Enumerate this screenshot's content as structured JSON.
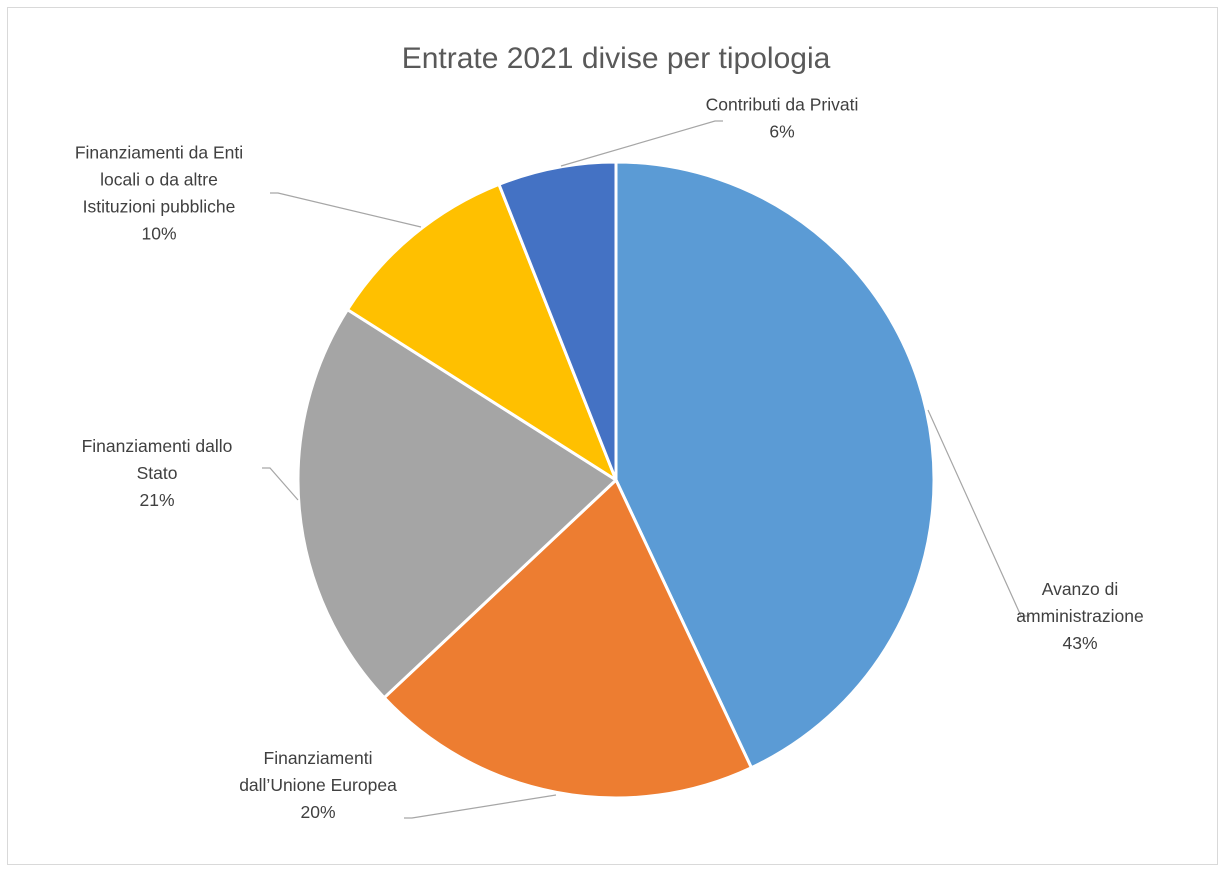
{
  "chart_data": {
    "type": "pie",
    "title": "Entrate 2021 divise per tipologia",
    "slices": [
      {
        "label_lines": [
          "Avanzo di",
          "amministrazione"
        ],
        "value": 43,
        "value_label": "43%",
        "color": "#5b9bd5"
      },
      {
        "label_lines": [
          "Finanziamenti",
          "dall’Unione Europea"
        ],
        "value": 20,
        "value_label": "20%",
        "color": "#ed7d31"
      },
      {
        "label_lines": [
          "Finanziamenti dallo",
          "Stato"
        ],
        "value": 21,
        "value_label": "21%",
        "color": "#a5a5a5"
      },
      {
        "label_lines": [
          "Finanziamenti da Enti",
          "locali o da altre",
          "Istituzioni pubbliche"
        ],
        "value": 10,
        "value_label": "10%",
        "color": "#ffc000"
      },
      {
        "label_lines": [
          "Contributi da Privati"
        ],
        "value": 6,
        "value_label": "6%",
        "color": "#4472c4"
      }
    ],
    "start_angle": "12 o'clock",
    "direction": "clockwise",
    "legend": "none (data labels with leader lines)"
  }
}
